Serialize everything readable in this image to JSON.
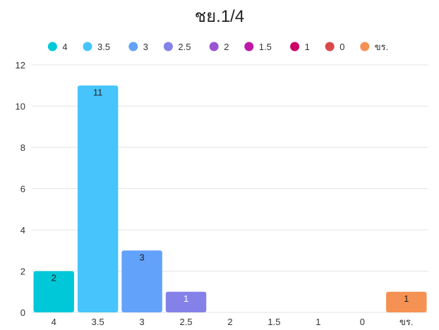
{
  "chart_data": {
    "type": "bar",
    "title": "ชย.1/4",
    "xlabel": "",
    "ylabel": "",
    "ylim": [
      0,
      12
    ],
    "yticks": [
      0,
      2,
      4,
      6,
      8,
      10,
      12
    ],
    "grid": true,
    "legend_position": "top",
    "categories": [
      "4",
      "3.5",
      "3",
      "2.5",
      "2",
      "1.5",
      "1",
      "0",
      "ขร."
    ],
    "values": [
      2,
      11,
      3,
      1,
      0,
      0,
      0,
      0,
      1
    ],
    "data_labels": [
      "2",
      "11",
      "3",
      "1",
      "",
      "",
      "",
      "",
      "1"
    ],
    "colors": [
      "#00c8d8",
      "#47c4fb",
      "#62a2fa",
      "#8482e8",
      "#9b55d2",
      "#be19a8",
      "#cc0066",
      "#db4a4a",
      "#f59152"
    ],
    "label_colors": [
      "#222222",
      "#222222",
      "#222222",
      "#ffffff",
      "#ffffff",
      "#ffffff",
      "#ffffff",
      "#ffffff",
      "#222222"
    ]
  }
}
